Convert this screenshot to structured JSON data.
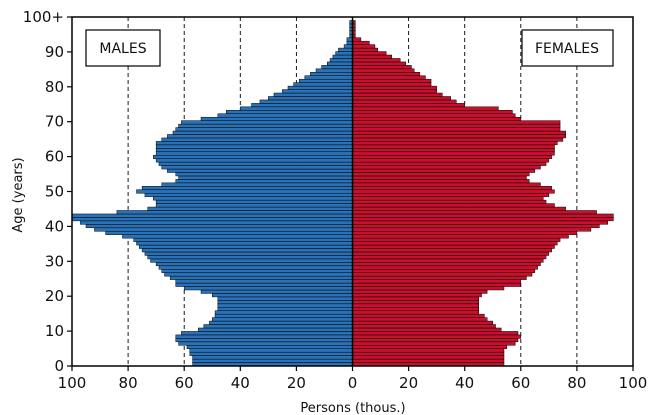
{
  "chart_data": {
    "type": "bar",
    "subtype": "population-pyramid",
    "orientation": "horizontal",
    "ages": [
      0,
      1,
      2,
      3,
      4,
      5,
      6,
      7,
      8,
      9,
      10,
      11,
      12,
      13,
      14,
      15,
      16,
      17,
      18,
      19,
      20,
      21,
      22,
      23,
      24,
      25,
      26,
      27,
      28,
      29,
      30,
      31,
      32,
      33,
      34,
      35,
      36,
      37,
      38,
      39,
      40,
      41,
      42,
      43,
      44,
      45,
      46,
      47,
      48,
      49,
      50,
      51,
      52,
      53,
      54,
      55,
      56,
      57,
      58,
      59,
      60,
      61,
      62,
      63,
      64,
      65,
      66,
      67,
      68,
      69,
      70,
      71,
      72,
      73,
      74,
      75,
      76,
      77,
      78,
      79,
      80,
      81,
      82,
      83,
      84,
      85,
      86,
      87,
      88,
      89,
      90,
      91,
      92,
      93,
      94,
      95,
      96,
      97,
      98,
      99,
      100
    ],
    "series": [
      {
        "name": "MALES",
        "color": "#2a72b8",
        "side": "left",
        "values": [
          57,
          57,
          57,
          58,
          58,
          59,
          62,
          63,
          63,
          61,
          55,
          53,
          51,
          50,
          49,
          49,
          48,
          48,
          48,
          48,
          50,
          54,
          60,
          63,
          63,
          65,
          67,
          68,
          69,
          70,
          72,
          73,
          74,
          75,
          76,
          77,
          78,
          82,
          88,
          92,
          95,
          97,
          100,
          100,
          84,
          73,
          70,
          70,
          71,
          74,
          77,
          75,
          68,
          63,
          62,
          63,
          66,
          68,
          69,
          70,
          71,
          70,
          70,
          70,
          70,
          68,
          66,
          64,
          63,
          62,
          61,
          54,
          48,
          45,
          40,
          36,
          33,
          30,
          28,
          25,
          23,
          21,
          19,
          17,
          15,
          13,
          11,
          9,
          8,
          7,
          6,
          5,
          3,
          2,
          2,
          1,
          1,
          1,
          1,
          1,
          0
        ]
      },
      {
        "name": "FEMALES",
        "color": "#c8102e",
        "side": "right",
        "values": [
          54,
          54,
          54,
          54,
          54,
          55,
          58,
          59,
          60,
          59,
          53,
          51,
          50,
          48,
          47,
          45,
          45,
          45,
          45,
          45,
          46,
          48,
          54,
          60,
          60,
          62,
          64,
          65,
          66,
          67,
          68,
          69,
          70,
          71,
          72,
          73,
          74,
          77,
          80,
          85,
          88,
          91,
          93,
          93,
          87,
          76,
          72,
          69,
          68,
          70,
          72,
          71,
          67,
          63,
          62,
          63,
          65,
          67,
          69,
          70,
          71,
          72,
          72,
          72,
          73,
          75,
          76,
          76,
          74,
          74,
          74,
          60,
          58,
          57,
          52,
          40,
          37,
          35,
          32,
          30,
          30,
          28,
          28,
          26,
          24,
          22,
          21,
          19,
          17,
          14,
          12,
          9,
          8,
          6,
          3,
          1,
          1,
          1,
          1,
          1,
          0
        ]
      }
    ],
    "xlabel": "Persons (thous.)",
    "ylabel": "Age (years)",
    "xlim": [
      -100,
      100
    ],
    "ylim": [
      0,
      100
    ],
    "x_tick_labels": [
      "100",
      "80",
      "60",
      "40",
      "20",
      "0",
      "20",
      "40",
      "60",
      "80",
      "100"
    ],
    "x_ticks": [
      -100,
      -80,
      -60,
      -40,
      -20,
      0,
      20,
      40,
      60,
      80,
      100
    ],
    "y_tick_labels": [
      "0",
      "10",
      "20",
      "30",
      "40",
      "50",
      "60",
      "70",
      "80",
      "90",
      "100+"
    ],
    "y_ticks": [
      0,
      10,
      20,
      30,
      40,
      50,
      60,
      70,
      80,
      90,
      100
    ],
    "grid": "vertical dashed",
    "legend": [
      "MALES",
      "FEMALES"
    ]
  }
}
